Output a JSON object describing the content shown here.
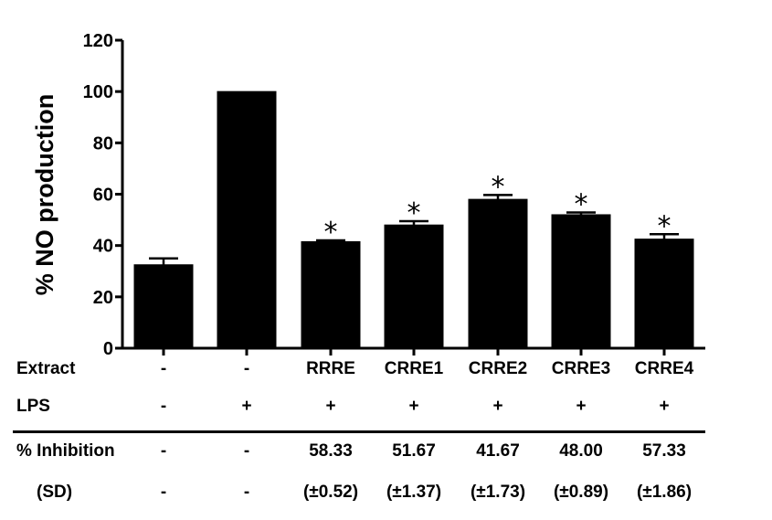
{
  "chart_data": {
    "type": "bar",
    "ylabel": "% NO production",
    "xlabel": "",
    "title": "",
    "ylim": [
      0,
      120
    ],
    "yticks": [
      0,
      20,
      40,
      60,
      80,
      100,
      120
    ],
    "grid": false,
    "bar_color": "#000000",
    "values": [
      32.5,
      100,
      41.5,
      48,
      58,
      52,
      42.5
    ],
    "errors": [
      2.5,
      0,
      0.5,
      1.5,
      1.7,
      0.9,
      1.9
    ],
    "significance": [
      "",
      "",
      "*",
      "*",
      "*",
      "*",
      "*"
    ]
  },
  "table": {
    "rows": [
      {
        "label": "Extract",
        "cells": [
          "-",
          "-",
          "RRRE",
          "CRRE1",
          "CRRE2",
          "CRRE3",
          "CRRE4"
        ]
      },
      {
        "label": "LPS",
        "cells": [
          "-",
          "+",
          "+",
          "+",
          "+",
          "+",
          "+"
        ]
      },
      {
        "label": "% Inhibition",
        "cells": [
          "-",
          "-",
          "58.33",
          "51.67",
          "41.67",
          "48.00",
          "57.33"
        ]
      },
      {
        "label": "(SD)",
        "cells": [
          "-",
          "-",
          "(±0.52)",
          "(±1.37)",
          "(±1.73)",
          "(±0.89)",
          "(±1.86)"
        ]
      }
    ]
  }
}
